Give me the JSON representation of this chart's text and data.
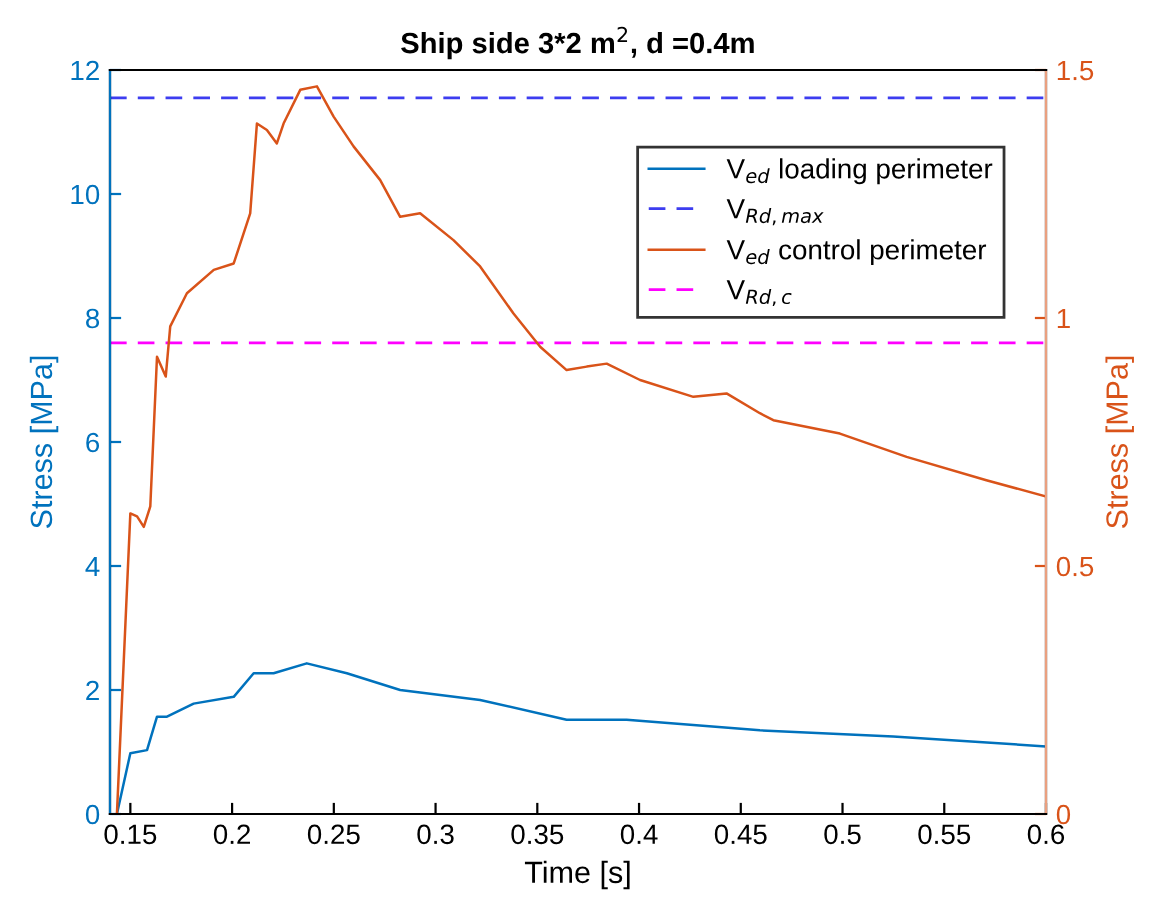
{
  "chart_data": {
    "type": "line",
    "title": "Ship side 3*2 m$^{2}$, d =0.4m",
    "xlabel": "Time [s]",
    "ylabel": "Stress [MPa]",
    "y2label": "Stress [MPa]",
    "xlim": [
      0.14,
      0.6
    ],
    "xticks": [
      0.15,
      0.2,
      0.25,
      0.3,
      0.35,
      0.4,
      0.45,
      0.5,
      0.55,
      0.6
    ],
    "ylim": [
      0,
      12
    ],
    "yticks": [
      0,
      2,
      4,
      6,
      8,
      10,
      12
    ],
    "y2lim": [
      0,
      1.5
    ],
    "y2ticks": [
      0,
      0.5,
      1,
      1.5
    ],
    "grid": false,
    "legend": "top right",
    "line_style": "solid",
    "marker": "none",
    "series": [
      {
        "name": "V$_{ed}$ loading perimeter",
        "color": "#0072bd",
        "axis": "y",
        "x": [
          0.1434,
          0.15,
          0.1582,
          0.1631,
          0.168,
          0.1811,
          0.2008,
          0.2106,
          0.2204,
          0.2367,
          0.2564,
          0.2826,
          0.3219,
          0.3644,
          0.3808,
          0.3939,
          0.4594,
          0.5249,
          0.6
        ],
        "values": [
          0,
          0.98,
          1.03,
          1.57,
          1.57,
          1.78,
          1.89,
          2.27,
          2.27,
          2.43,
          2.27,
          2.0,
          1.84,
          1.52,
          1.52,
          1.52,
          1.35,
          1.25,
          1.09
        ]
      },
      {
        "name": "V$_{ed}$ control perimeter",
        "color": "#d95319",
        "axis": "y2",
        "x": [
          0.1434,
          0.15,
          0.1533,
          0.1566,
          0.1598,
          0.1631,
          0.1674,
          0.1696,
          0.1778,
          0.191,
          0.2008,
          0.2089,
          0.2122,
          0.2171,
          0.222,
          0.2253,
          0.2335,
          0.2417,
          0.2499,
          0.2597,
          0.2728,
          0.2826,
          0.2924,
          0.3088,
          0.3219,
          0.3383,
          0.3514,
          0.3644,
          0.3743,
          0.3841,
          0.4005,
          0.4267,
          0.443,
          0.4594,
          0.466,
          0.4987,
          0.5315,
          0.5707,
          0.6
        ],
        "values": [
          0,
          0.606,
          0.6,
          0.579,
          0.62,
          0.922,
          0.882,
          0.983,
          1.05,
          1.097,
          1.11,
          1.211,
          1.392,
          1.379,
          1.352,
          1.392,
          1.46,
          1.467,
          1.406,
          1.346,
          1.278,
          1.204,
          1.211,
          1.157,
          1.104,
          1.009,
          0.942,
          0.895,
          0.902,
          0.908,
          0.875,
          0.841,
          0.848,
          0.808,
          0.794,
          0.767,
          0.72,
          0.673,
          0.64
        ]
      }
    ],
    "ref_lines": [
      {
        "axis": "y",
        "value": 11.55,
        "label": "V$_{Rd,max}$",
        "color": "#3d3df0",
        "line_style": "dashed"
      },
      {
        "axis": "y",
        "value": 7.6,
        "label": "V$_{Rd,c}$",
        "color": "#ff00ff",
        "line_style": "dashed"
      }
    ]
  }
}
